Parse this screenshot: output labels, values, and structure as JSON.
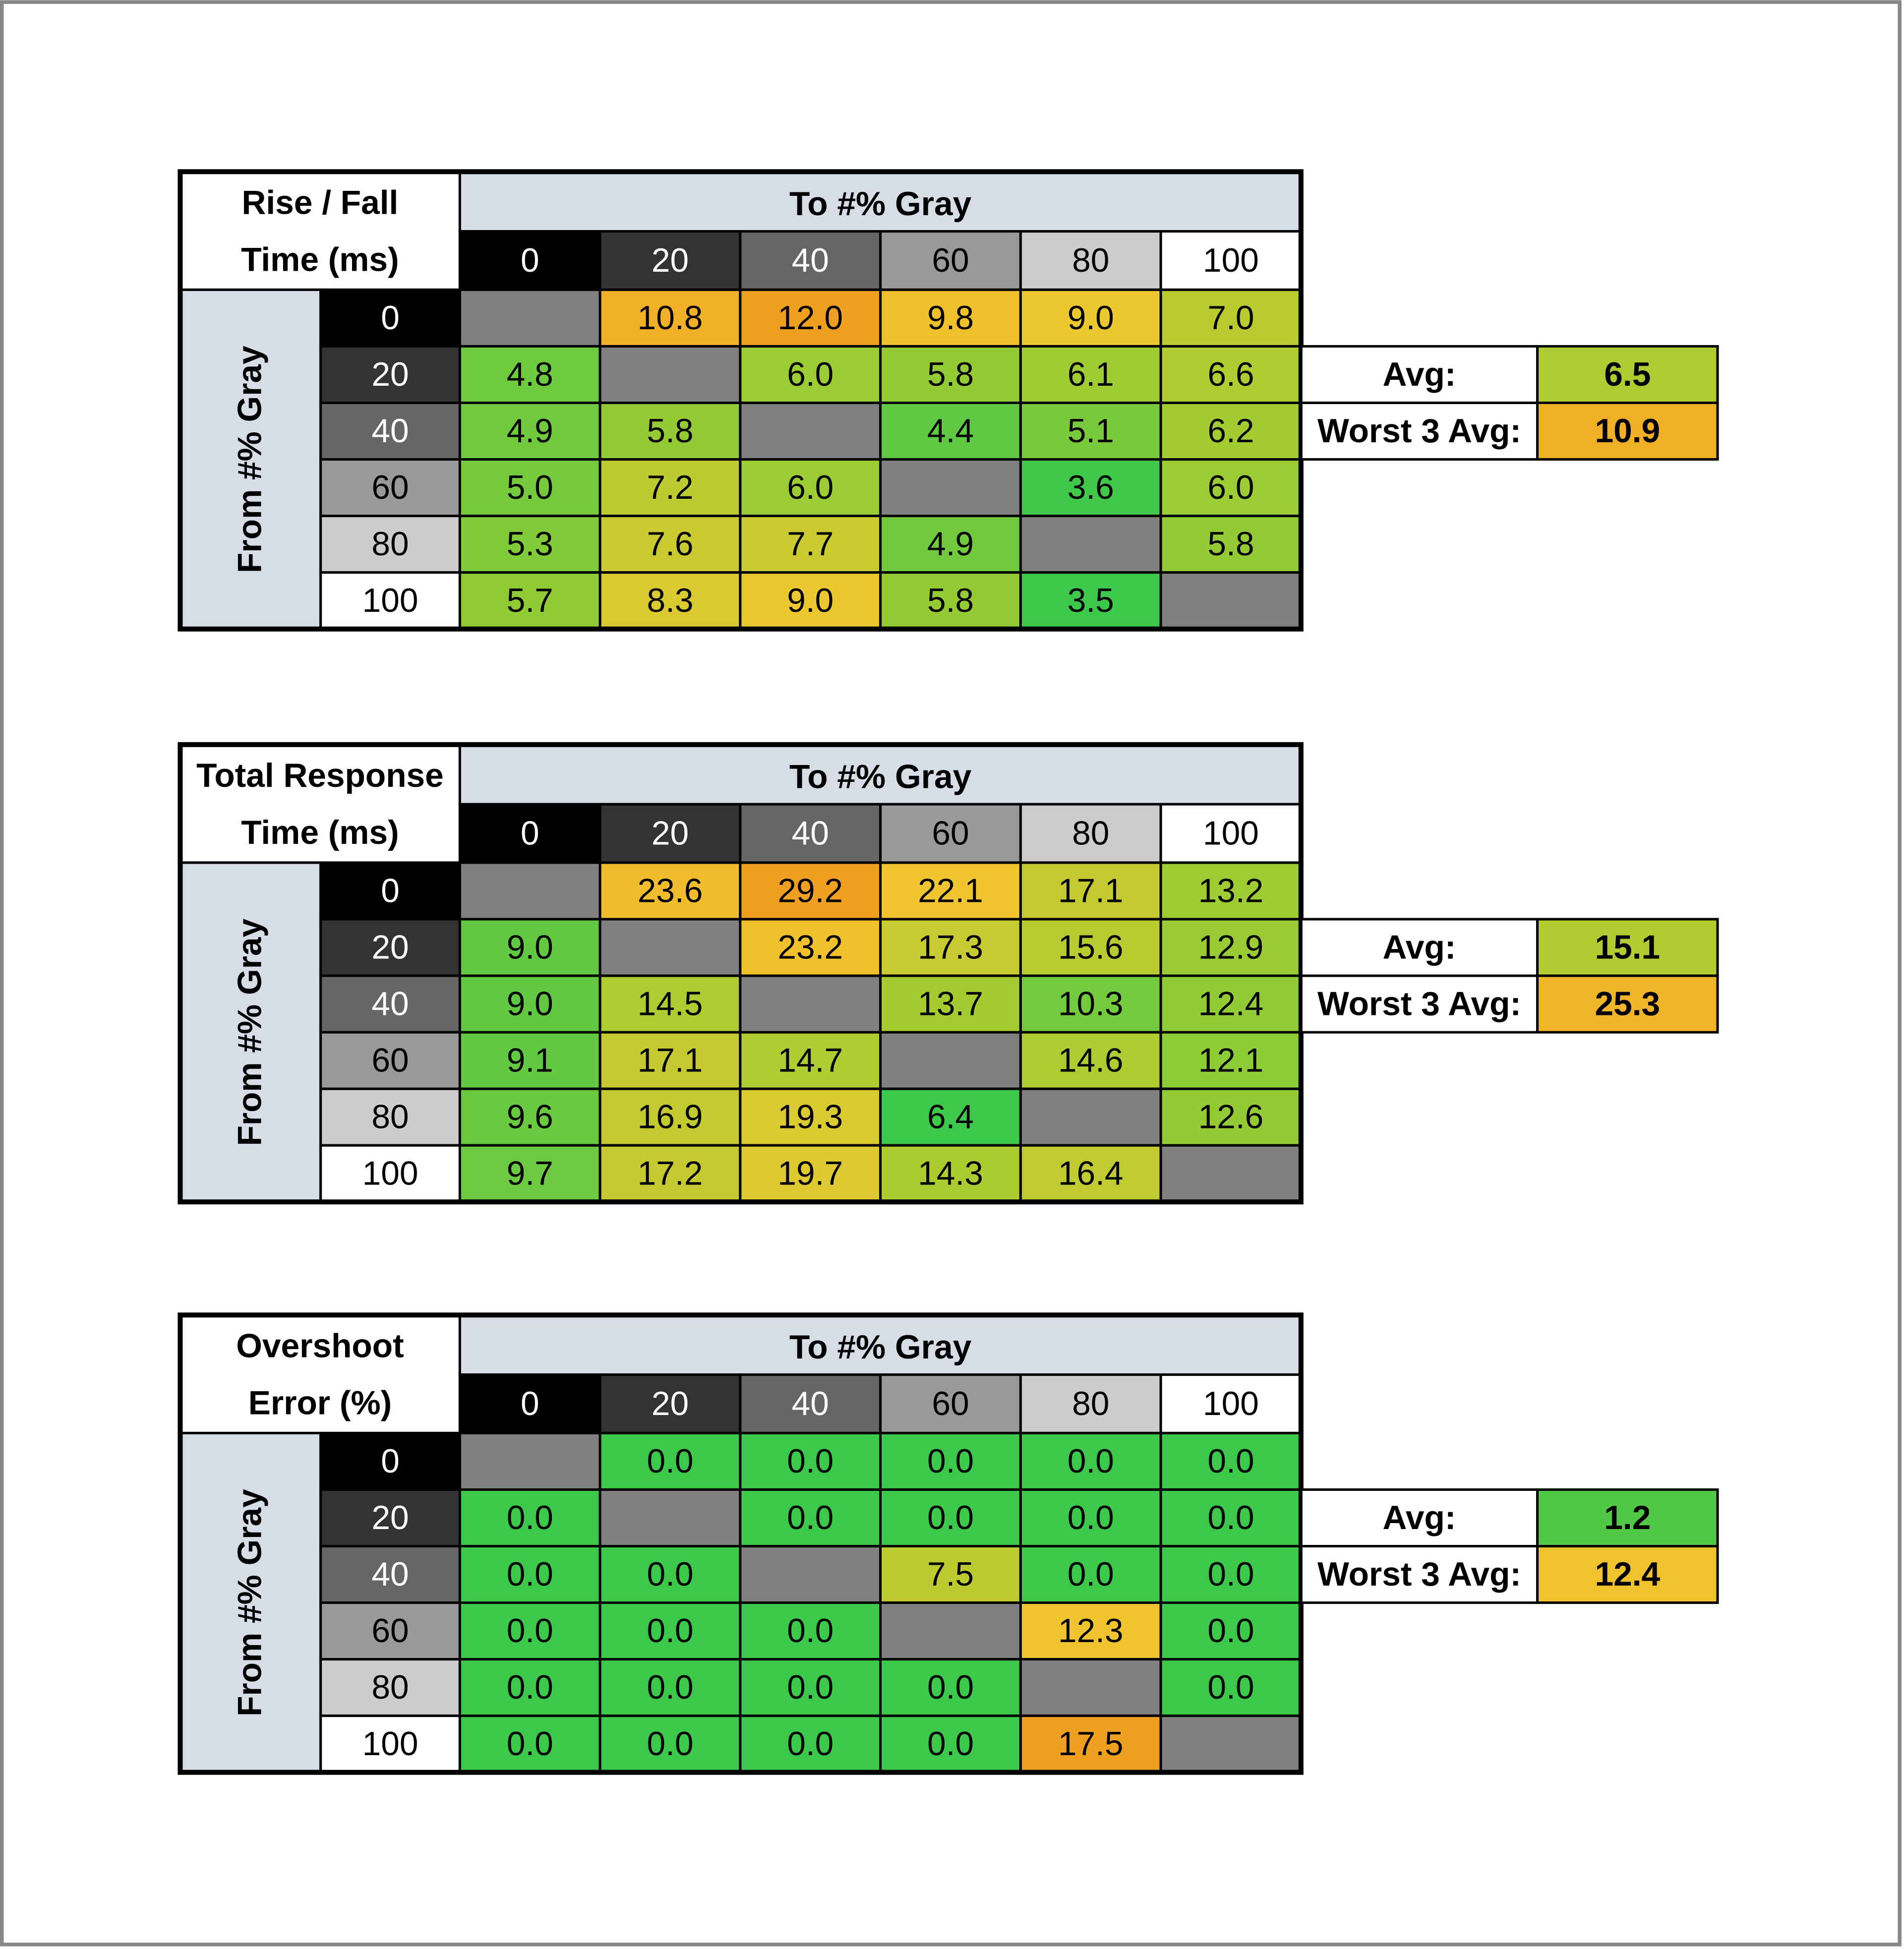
{
  "tables": [
    {
      "title": [
        "Rise / Fall",
        "Time (ms)"
      ],
      "to_label": "To #% Gray",
      "from_label": "From #% Gray",
      "columns": [
        "0",
        "20",
        "40",
        "60",
        "80",
        "100"
      ],
      "rows": [
        {
          "label": "0",
          "cells": [
            null,
            "10.8",
            "12.0",
            "9.8",
            "9.0",
            "7.0"
          ]
        },
        {
          "label": "20",
          "cells": [
            "4.8",
            null,
            "6.0",
            "5.8",
            "6.1",
            "6.6"
          ]
        },
        {
          "label": "40",
          "cells": [
            "4.9",
            "5.8",
            null,
            "4.4",
            "5.1",
            "6.2"
          ]
        },
        {
          "label": "60",
          "cells": [
            "5.0",
            "7.2",
            "6.0",
            null,
            "3.6",
            "6.0"
          ]
        },
        {
          "label": "80",
          "cells": [
            "5.3",
            "7.6",
            "7.7",
            "4.9",
            null,
            "5.8"
          ]
        },
        {
          "label": "100",
          "cells": [
            "5.7",
            "8.3",
            "9.0",
            "5.8",
            "3.5",
            null
          ]
        }
      ],
      "summary": [
        {
          "label": "Avg:",
          "value": "6.5"
        },
        {
          "label": "Worst 3 Avg:",
          "value": "10.9"
        }
      ]
    },
    {
      "title": [
        "Total Response",
        "Time (ms)"
      ],
      "to_label": "To #% Gray",
      "from_label": "From #% Gray",
      "columns": [
        "0",
        "20",
        "40",
        "60",
        "80",
        "100"
      ],
      "rows": [
        {
          "label": "0",
          "cells": [
            null,
            "23.6",
            "29.2",
            "22.1",
            "17.1",
            "13.2"
          ]
        },
        {
          "label": "20",
          "cells": [
            "9.0",
            null,
            "23.2",
            "17.3",
            "15.6",
            "12.9"
          ]
        },
        {
          "label": "40",
          "cells": [
            "9.0",
            "14.5",
            null,
            "13.7",
            "10.3",
            "12.4"
          ]
        },
        {
          "label": "60",
          "cells": [
            "9.1",
            "17.1",
            "14.7",
            null,
            "14.6",
            "12.1"
          ]
        },
        {
          "label": "80",
          "cells": [
            "9.6",
            "16.9",
            "19.3",
            "6.4",
            null,
            "12.6"
          ]
        },
        {
          "label": "100",
          "cells": [
            "9.7",
            "17.2",
            "19.7",
            "14.3",
            "16.4",
            null
          ]
        }
      ],
      "summary": [
        {
          "label": "Avg:",
          "value": "15.1"
        },
        {
          "label": "Worst 3 Avg:",
          "value": "25.3"
        }
      ]
    },
    {
      "title": [
        "Overshoot",
        "Error (%)"
      ],
      "to_label": "To #% Gray",
      "from_label": "From #% Gray",
      "columns": [
        "0",
        "20",
        "40",
        "60",
        "80",
        "100"
      ],
      "rows": [
        {
          "label": "0",
          "cells": [
            null,
            "0.0",
            "0.0",
            "0.0",
            "0.0",
            "0.0"
          ]
        },
        {
          "label": "20",
          "cells": [
            "0.0",
            null,
            "0.0",
            "0.0",
            "0.0",
            "0.0"
          ]
        },
        {
          "label": "40",
          "cells": [
            "0.0",
            "0.0",
            null,
            "7.5",
            "0.0",
            "0.0"
          ]
        },
        {
          "label": "60",
          "cells": [
            "0.0",
            "0.0",
            "0.0",
            null,
            "12.3",
            "0.0"
          ]
        },
        {
          "label": "80",
          "cells": [
            "0.0",
            "0.0",
            "0.0",
            "0.0",
            null,
            "0.0"
          ]
        },
        {
          "label": "100",
          "cells": [
            "0.0",
            "0.0",
            "0.0",
            "0.0",
            "17.5",
            null
          ]
        }
      ],
      "summary": [
        {
          "label": "Avg:",
          "value": "1.2"
        },
        {
          "label": "Worst 3 Avg:",
          "value": "12.4"
        }
      ]
    }
  ]
}
